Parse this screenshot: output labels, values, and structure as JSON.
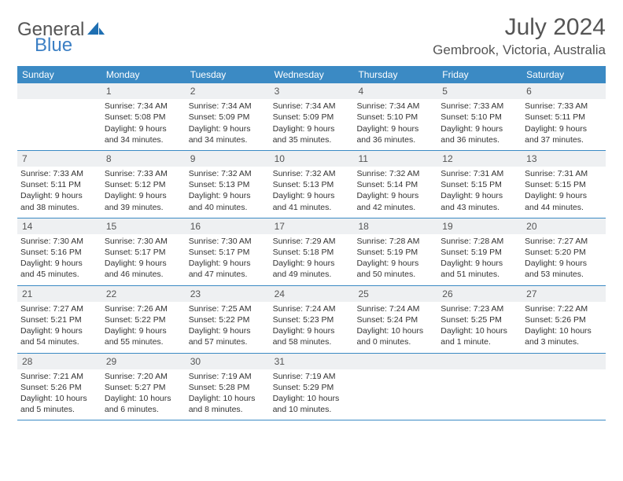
{
  "brand": {
    "part1": "General",
    "part2": "Blue"
  },
  "title": "July 2024",
  "location": "Gembrook, Victoria, Australia",
  "colors": {
    "header_bg": "#3b8ac4",
    "daynum_bg": "#eef0f2",
    "text": "#333333",
    "title_text": "#555555"
  },
  "weekdays": [
    "Sunday",
    "Monday",
    "Tuesday",
    "Wednesday",
    "Thursday",
    "Friday",
    "Saturday"
  ],
  "weeks": [
    [
      {
        "n": "",
        "lines": []
      },
      {
        "n": "1",
        "lines": [
          "Sunrise: 7:34 AM",
          "Sunset: 5:08 PM",
          "Daylight: 9 hours",
          "and 34 minutes."
        ]
      },
      {
        "n": "2",
        "lines": [
          "Sunrise: 7:34 AM",
          "Sunset: 5:09 PM",
          "Daylight: 9 hours",
          "and 34 minutes."
        ]
      },
      {
        "n": "3",
        "lines": [
          "Sunrise: 7:34 AM",
          "Sunset: 5:09 PM",
          "Daylight: 9 hours",
          "and 35 minutes."
        ]
      },
      {
        "n": "4",
        "lines": [
          "Sunrise: 7:34 AM",
          "Sunset: 5:10 PM",
          "Daylight: 9 hours",
          "and 36 minutes."
        ]
      },
      {
        "n": "5",
        "lines": [
          "Sunrise: 7:33 AM",
          "Sunset: 5:10 PM",
          "Daylight: 9 hours",
          "and 36 minutes."
        ]
      },
      {
        "n": "6",
        "lines": [
          "Sunrise: 7:33 AM",
          "Sunset: 5:11 PM",
          "Daylight: 9 hours",
          "and 37 minutes."
        ]
      }
    ],
    [
      {
        "n": "7",
        "lines": [
          "Sunrise: 7:33 AM",
          "Sunset: 5:11 PM",
          "Daylight: 9 hours",
          "and 38 minutes."
        ]
      },
      {
        "n": "8",
        "lines": [
          "Sunrise: 7:33 AM",
          "Sunset: 5:12 PM",
          "Daylight: 9 hours",
          "and 39 minutes."
        ]
      },
      {
        "n": "9",
        "lines": [
          "Sunrise: 7:32 AM",
          "Sunset: 5:13 PM",
          "Daylight: 9 hours",
          "and 40 minutes."
        ]
      },
      {
        "n": "10",
        "lines": [
          "Sunrise: 7:32 AM",
          "Sunset: 5:13 PM",
          "Daylight: 9 hours",
          "and 41 minutes."
        ]
      },
      {
        "n": "11",
        "lines": [
          "Sunrise: 7:32 AM",
          "Sunset: 5:14 PM",
          "Daylight: 9 hours",
          "and 42 minutes."
        ]
      },
      {
        "n": "12",
        "lines": [
          "Sunrise: 7:31 AM",
          "Sunset: 5:15 PM",
          "Daylight: 9 hours",
          "and 43 minutes."
        ]
      },
      {
        "n": "13",
        "lines": [
          "Sunrise: 7:31 AM",
          "Sunset: 5:15 PM",
          "Daylight: 9 hours",
          "and 44 minutes."
        ]
      }
    ],
    [
      {
        "n": "14",
        "lines": [
          "Sunrise: 7:30 AM",
          "Sunset: 5:16 PM",
          "Daylight: 9 hours",
          "and 45 minutes."
        ]
      },
      {
        "n": "15",
        "lines": [
          "Sunrise: 7:30 AM",
          "Sunset: 5:17 PM",
          "Daylight: 9 hours",
          "and 46 minutes."
        ]
      },
      {
        "n": "16",
        "lines": [
          "Sunrise: 7:30 AM",
          "Sunset: 5:17 PM",
          "Daylight: 9 hours",
          "and 47 minutes."
        ]
      },
      {
        "n": "17",
        "lines": [
          "Sunrise: 7:29 AM",
          "Sunset: 5:18 PM",
          "Daylight: 9 hours",
          "and 49 minutes."
        ]
      },
      {
        "n": "18",
        "lines": [
          "Sunrise: 7:28 AM",
          "Sunset: 5:19 PM",
          "Daylight: 9 hours",
          "and 50 minutes."
        ]
      },
      {
        "n": "19",
        "lines": [
          "Sunrise: 7:28 AM",
          "Sunset: 5:19 PM",
          "Daylight: 9 hours",
          "and 51 minutes."
        ]
      },
      {
        "n": "20",
        "lines": [
          "Sunrise: 7:27 AM",
          "Sunset: 5:20 PM",
          "Daylight: 9 hours",
          "and 53 minutes."
        ]
      }
    ],
    [
      {
        "n": "21",
        "lines": [
          "Sunrise: 7:27 AM",
          "Sunset: 5:21 PM",
          "Daylight: 9 hours",
          "and 54 minutes."
        ]
      },
      {
        "n": "22",
        "lines": [
          "Sunrise: 7:26 AM",
          "Sunset: 5:22 PM",
          "Daylight: 9 hours",
          "and 55 minutes."
        ]
      },
      {
        "n": "23",
        "lines": [
          "Sunrise: 7:25 AM",
          "Sunset: 5:22 PM",
          "Daylight: 9 hours",
          "and 57 minutes."
        ]
      },
      {
        "n": "24",
        "lines": [
          "Sunrise: 7:24 AM",
          "Sunset: 5:23 PM",
          "Daylight: 9 hours",
          "and 58 minutes."
        ]
      },
      {
        "n": "25",
        "lines": [
          "Sunrise: 7:24 AM",
          "Sunset: 5:24 PM",
          "Daylight: 10 hours",
          "and 0 minutes."
        ]
      },
      {
        "n": "26",
        "lines": [
          "Sunrise: 7:23 AM",
          "Sunset: 5:25 PM",
          "Daylight: 10 hours",
          "and 1 minute."
        ]
      },
      {
        "n": "27",
        "lines": [
          "Sunrise: 7:22 AM",
          "Sunset: 5:26 PM",
          "Daylight: 10 hours",
          "and 3 minutes."
        ]
      }
    ],
    [
      {
        "n": "28",
        "lines": [
          "Sunrise: 7:21 AM",
          "Sunset: 5:26 PM",
          "Daylight: 10 hours",
          "and 5 minutes."
        ]
      },
      {
        "n": "29",
        "lines": [
          "Sunrise: 7:20 AM",
          "Sunset: 5:27 PM",
          "Daylight: 10 hours",
          "and 6 minutes."
        ]
      },
      {
        "n": "30",
        "lines": [
          "Sunrise: 7:19 AM",
          "Sunset: 5:28 PM",
          "Daylight: 10 hours",
          "and 8 minutes."
        ]
      },
      {
        "n": "31",
        "lines": [
          "Sunrise: 7:19 AM",
          "Sunset: 5:29 PM",
          "Daylight: 10 hours",
          "and 10 minutes."
        ]
      },
      {
        "n": "",
        "lines": []
      },
      {
        "n": "",
        "lines": []
      },
      {
        "n": "",
        "lines": []
      }
    ]
  ]
}
